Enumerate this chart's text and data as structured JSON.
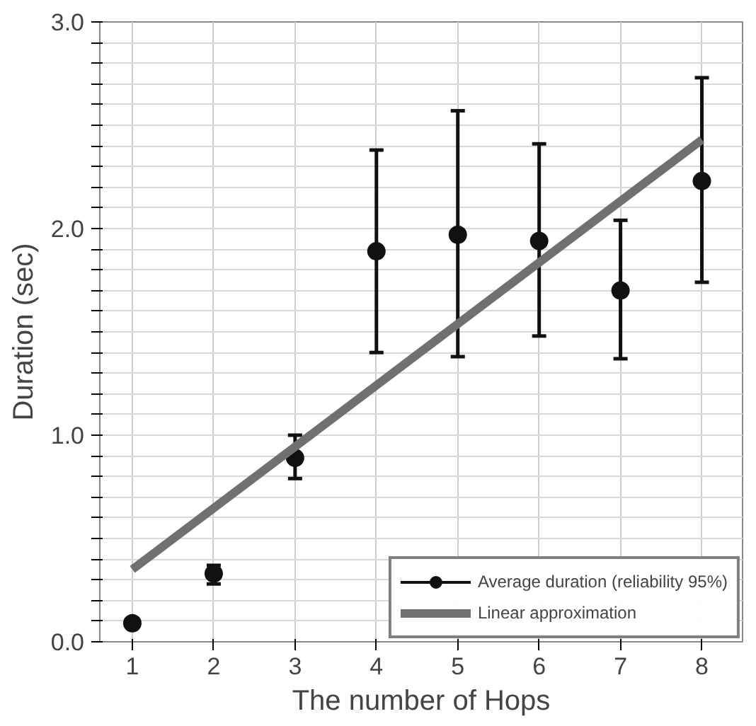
{
  "chart_data": {
    "type": "scatter",
    "xlabel": "The number of Hops",
    "ylabel": "Duration (sec)",
    "x": [
      1,
      2,
      3,
      4,
      5,
      6,
      7,
      8
    ],
    "series": [
      {
        "name": "Average duration (reliability 95%)",
        "color": "#111111",
        "marker": "circle",
        "values": [
          0.09,
          0.33,
          0.89,
          1.89,
          1.97,
          1.94,
          1.7,
          2.23
        ],
        "errors": [
          null,
          [
            0.28,
            0.37
          ],
          [
            0.79,
            1.0
          ],
          [
            1.4,
            2.38
          ],
          [
            1.38,
            2.57
          ],
          [
            1.48,
            2.41
          ],
          [
            1.37,
            2.04
          ],
          [
            1.74,
            2.73
          ]
        ]
      },
      {
        "name": "Linear approximation",
        "color": "#707070",
        "type": "line",
        "x": [
          1,
          8
        ],
        "values": [
          0.35,
          2.43
        ]
      }
    ],
    "xlim": [
      0.6,
      8.5
    ],
    "xticks": [
      1,
      2,
      3,
      4,
      5,
      6,
      7,
      8
    ],
    "ylim": [
      0,
      3.0
    ],
    "yticks": [
      {
        "value": 0,
        "label": "0.0"
      },
      {
        "value": 0.1,
        "label": null
      },
      {
        "value": 0.2,
        "label": null
      },
      {
        "value": 0.3,
        "label": null
      },
      {
        "value": 0.4,
        "label": null
      },
      {
        "value": 0.5,
        "label": null
      },
      {
        "value": 0.6,
        "label": null
      },
      {
        "value": 0.7,
        "label": null
      },
      {
        "value": 0.8,
        "label": null
      },
      {
        "value": 0.9,
        "label": null
      },
      {
        "value": 1,
        "label": "1.0"
      },
      {
        "value": 1.1,
        "label": null
      },
      {
        "value": 1.2,
        "label": null
      },
      {
        "value": 1.3,
        "label": null
      },
      {
        "value": 1.4,
        "label": null
      },
      {
        "value": 1.5,
        "label": null
      },
      {
        "value": 1.6,
        "label": null
      },
      {
        "value": 1.7,
        "label": null
      },
      {
        "value": 1.8,
        "label": null
      },
      {
        "value": 1.9,
        "label": null
      },
      {
        "value": 2,
        "label": "2.0"
      },
      {
        "value": 2.1,
        "label": null
      },
      {
        "value": 2.2,
        "label": null
      },
      {
        "value": 2.3,
        "label": null
      },
      {
        "value": 2.4,
        "label": null
      },
      {
        "value": 2.5,
        "label": null
      },
      {
        "value": 2.6,
        "label": null
      },
      {
        "value": 2.7,
        "label": null
      },
      {
        "value": 2.8,
        "label": null
      },
      {
        "value": 2.9,
        "label": null
      },
      {
        "value": 3,
        "label": "3.0"
      }
    ],
    "grid": true,
    "legend": "bottom right"
  }
}
